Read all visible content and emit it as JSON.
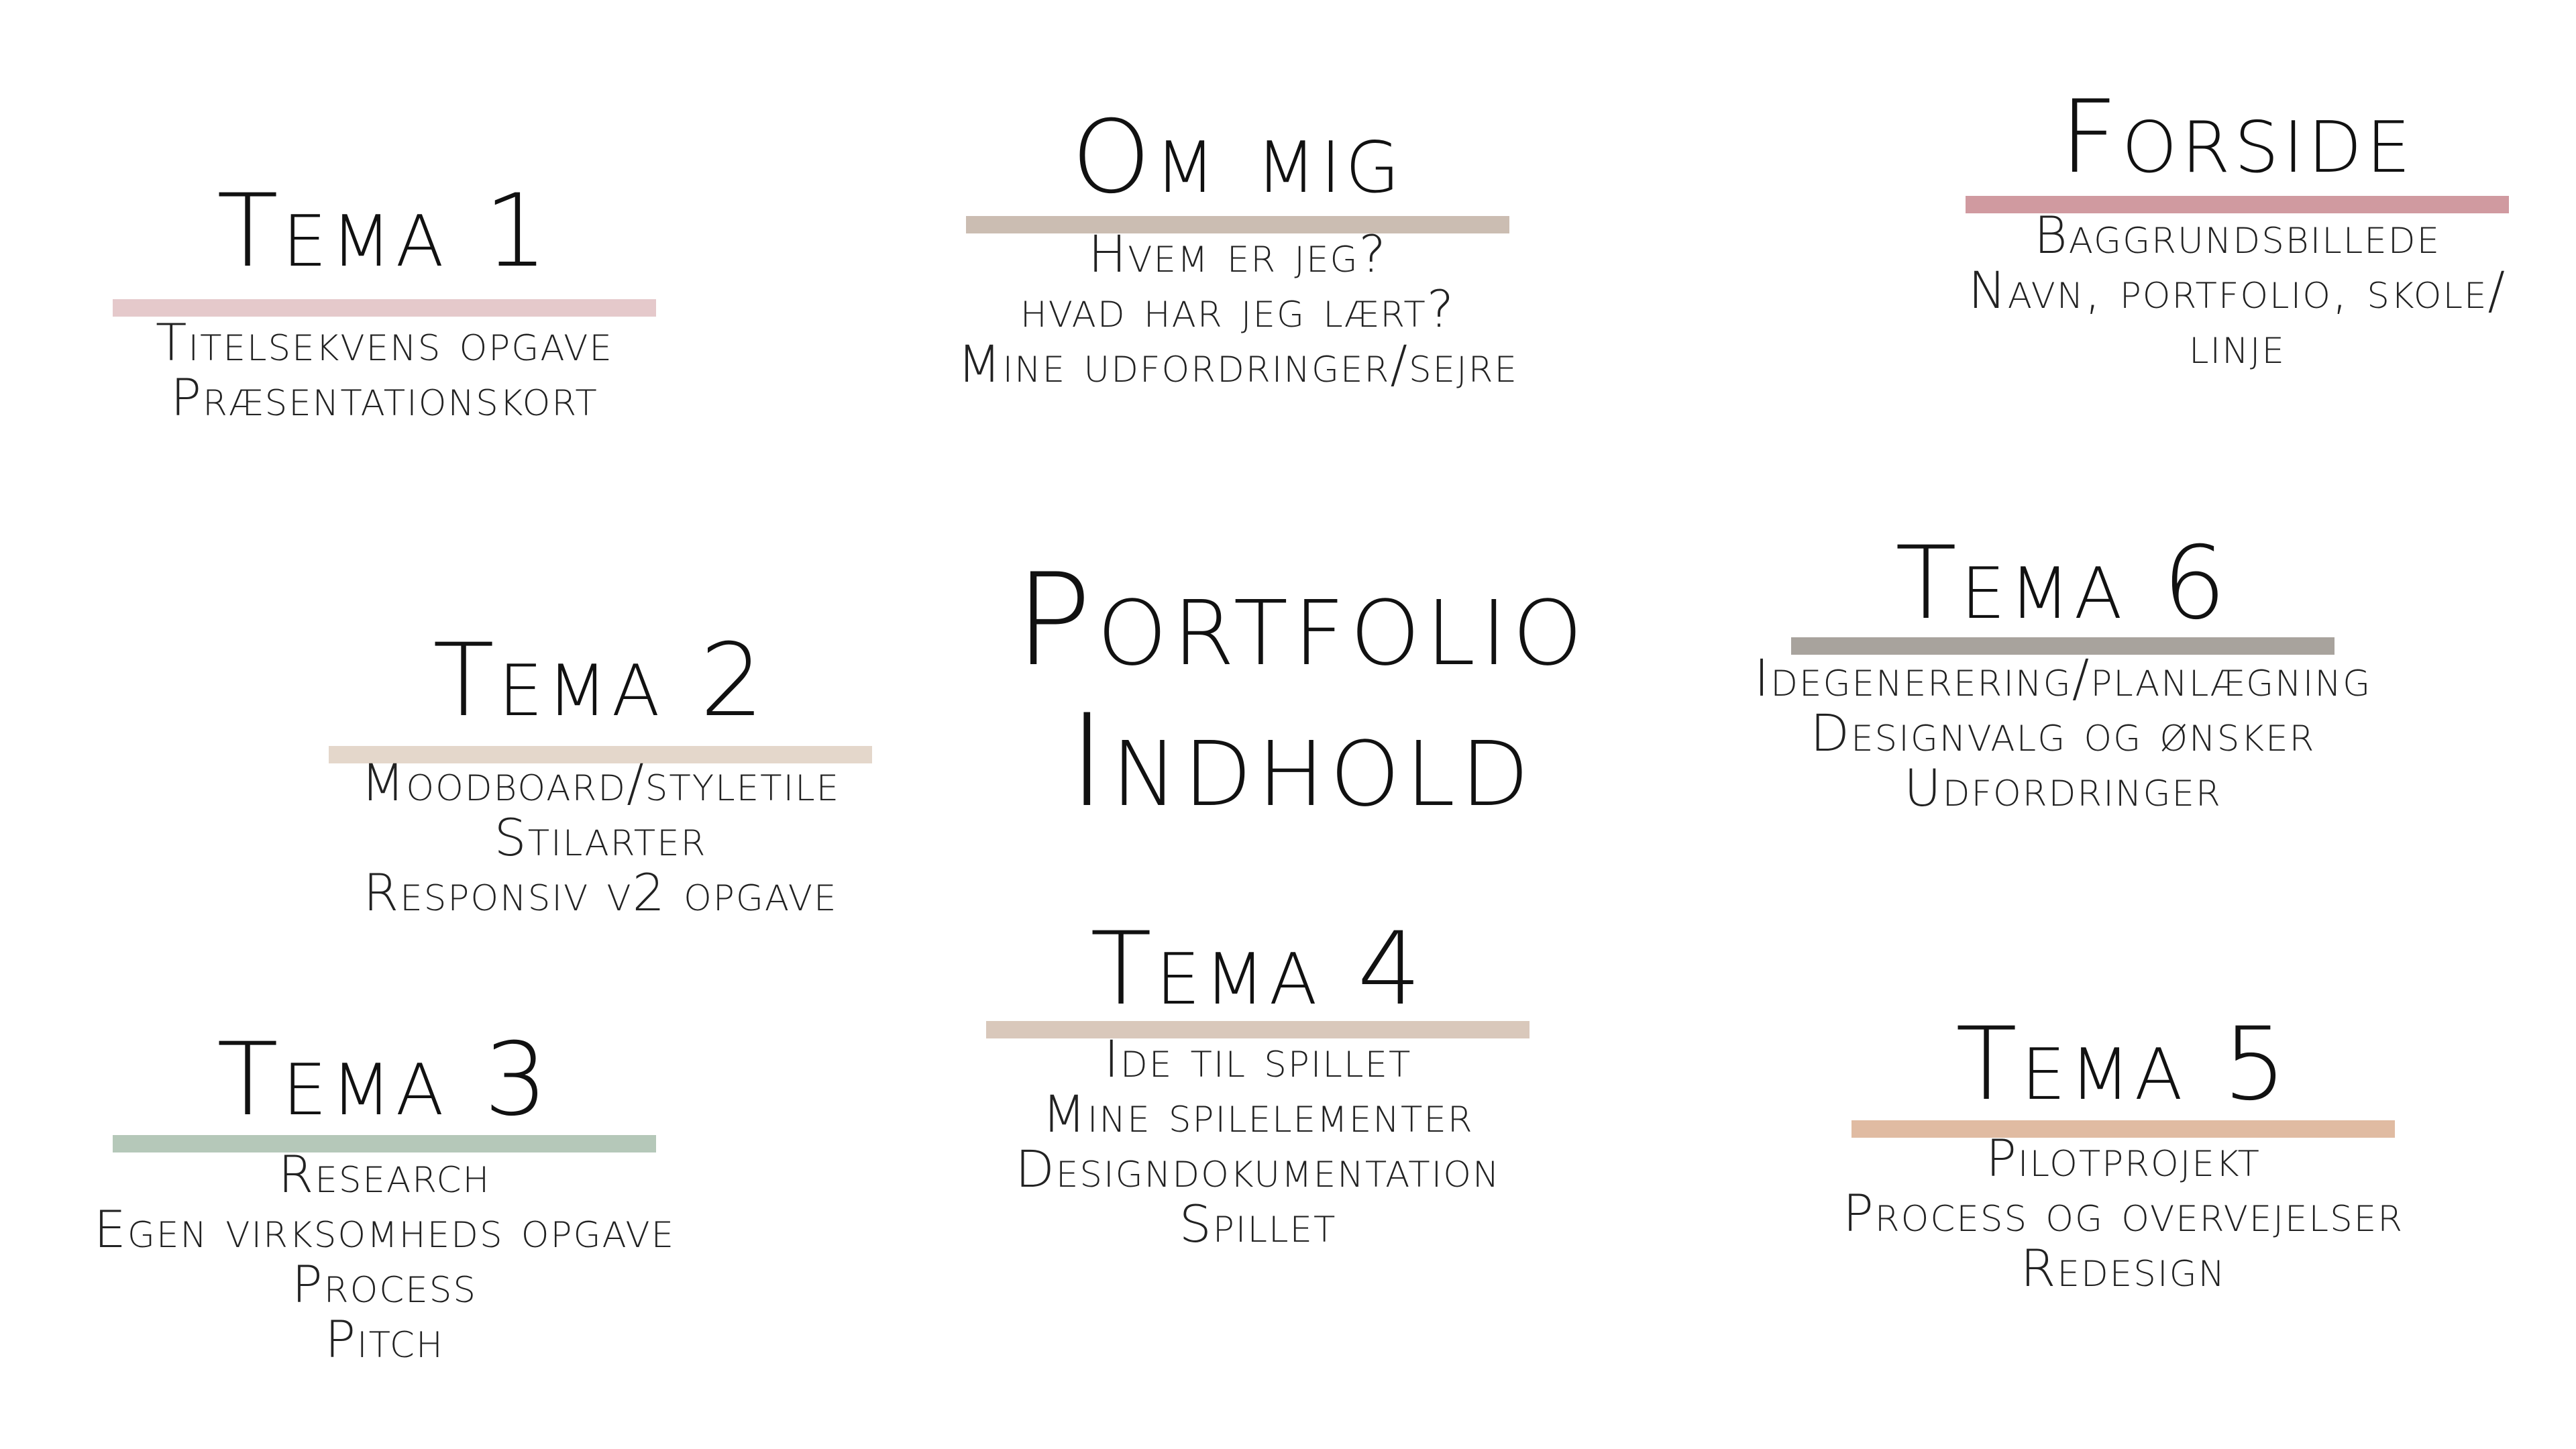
{
  "center": {
    "line1": "Portfolio",
    "line2": "Indhold"
  },
  "sections": {
    "tema1": {
      "title": "Tema 1",
      "bar_color": "#e5c9cb",
      "items": [
        "Titelsekvens opgave",
        "Præsentationskort"
      ]
    },
    "om_mig": {
      "title": "Om mig",
      "bar_color": "#cbbdb2",
      "items": [
        "Hvem er jeg?",
        "hvad har jeg lært?",
        "Mine udfordringer/sejre"
      ]
    },
    "forside": {
      "title": "Forside",
      "bar_color": "#d09aa0",
      "items": [
        "Baggrundsbillede",
        "Navn, portfolio, skole/",
        "linje"
      ]
    },
    "tema2": {
      "title": "Tema 2",
      "bar_color": "#e4d7cb",
      "items": [
        "Moodboard/styletile",
        "Stilarter",
        "Responsiv v2 opgave"
      ]
    },
    "tema6": {
      "title": "Tema 6",
      "bar_color": "#a8a39d",
      "items": [
        "Idegenerering/planlægning",
        "Designvalg og ønsker",
        "Udfordringer"
      ]
    },
    "tema3": {
      "title": "Tema 3",
      "bar_color": "#b5c8b9",
      "items": [
        "Research",
        "Egen virksomheds opgave",
        "Process",
        "Pitch"
      ]
    },
    "tema4": {
      "title": "Tema 4",
      "bar_color": "#d9c8bb",
      "items": [
        "Ide til spillet",
        "Mine spilelementer",
        "Designdokumentation",
        "Spillet"
      ]
    },
    "tema5": {
      "title": "Tema 5",
      "bar_color": "#e0bba2",
      "items": [
        "Pilotprojekt",
        "Process og overvejelser",
        "Redesign"
      ]
    }
  }
}
